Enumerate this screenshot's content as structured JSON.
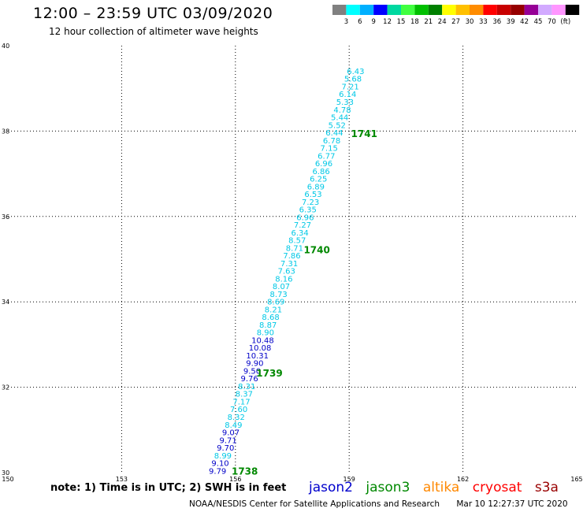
{
  "header": {
    "title": "12:00 – 23:59 UTC 03/09/2020",
    "subtitle": "12 hour collection of altimeter wave heights"
  },
  "legend": {
    "colors": [
      "#808080",
      "#00ffff",
      "#00b0ff",
      "#0000ff",
      "#00d8a0",
      "#40ff40",
      "#00c000",
      "#008000",
      "#ffff00",
      "#ffc000",
      "#ff8c00",
      "#ff0000",
      "#c80000",
      "#960000",
      "#960096",
      "#d2aaff",
      "#ff96ff",
      "#000000"
    ],
    "labels": [
      "3",
      "6",
      "9",
      "12",
      "15",
      "18",
      "21",
      "24",
      "27",
      "30",
      "33",
      "36",
      "39",
      "42",
      "45",
      "70",
      "(ft)"
    ]
  },
  "footer": {
    "note": "note: 1) Time is in UTC; 2) SWH is in feet",
    "satellites": [
      {
        "name": "jason2",
        "color": "#0000cc"
      },
      {
        "name": "jason3",
        "color": "#008800"
      },
      {
        "name": "altika",
        "color": "#ff8800"
      },
      {
        "name": "cryosat",
        "color": "#ff0000"
      },
      {
        "name": "s3a",
        "color": "#990000"
      }
    ],
    "credit": "NOAA/NESDIS Center for Satellite Applications and Research",
    "timestamp": "Mar 10 12:27:37 UTC 2020"
  },
  "chart_data": {
    "type": "scatter",
    "title": "12:00 – 23:59 UTC 03/09/2020",
    "subtitle": "12 hour collection of altimeter wave heights",
    "xlim": [
      150,
      165
    ],
    "ylim": [
      30,
      40
    ],
    "x_ticks": [
      150,
      153,
      156,
      159,
      162,
      165
    ],
    "y_ticks": [
      30,
      32,
      34,
      36,
      38,
      40
    ],
    "grid": true,
    "units": "ft",
    "series": [
      {
        "name": "jason2",
        "points": [
          {
            "x": 155.53,
            "y": 30.05,
            "v": 9.79
          },
          {
            "x": 155.6,
            "y": 30.23,
            "v": 9.1
          },
          {
            "x": 155.67,
            "y": 30.41,
            "v": 8.99
          },
          {
            "x": 155.74,
            "y": 30.59,
            "v": 9.7
          },
          {
            "x": 155.81,
            "y": 30.77,
            "v": 9.71
          },
          {
            "x": 155.88,
            "y": 30.95,
            "v": 9.07
          },
          {
            "x": 155.95,
            "y": 31.13,
            "v": 8.49
          },
          {
            "x": 156.02,
            "y": 31.31,
            "v": 8.32
          },
          {
            "x": 156.09,
            "y": 31.49,
            "v": 7.6
          },
          {
            "x": 156.16,
            "y": 31.67,
            "v": 7.17
          },
          {
            "x": 156.23,
            "y": 31.85,
            "v": 8.37
          },
          {
            "x": 156.3,
            "y": 32.03,
            "v": 8.31
          },
          {
            "x": 156.37,
            "y": 32.21,
            "v": 9.76
          },
          {
            "x": 156.44,
            "y": 32.39,
            "v": 9.5
          },
          {
            "x": 156.51,
            "y": 32.57,
            "v": 9.9
          },
          {
            "x": 156.58,
            "y": 32.75,
            "v": 10.31
          },
          {
            "x": 156.65,
            "y": 32.93,
            "v": 10.08
          },
          {
            "x": 156.72,
            "y": 33.11,
            "v": 10.48
          },
          {
            "x": 156.79,
            "y": 33.29,
            "v": 8.9
          },
          {
            "x": 156.86,
            "y": 33.47,
            "v": 8.87
          },
          {
            "x": 156.93,
            "y": 33.65,
            "v": 8.68
          },
          {
            "x": 157.0,
            "y": 33.83,
            "v": 8.21
          },
          {
            "x": 157.07,
            "y": 34.01,
            "v": 8.69
          },
          {
            "x": 157.14,
            "y": 34.19,
            "v": 8.73
          },
          {
            "x": 157.21,
            "y": 34.37,
            "v": 8.07
          },
          {
            "x": 157.28,
            "y": 34.55,
            "v": 8.16
          },
          {
            "x": 157.35,
            "y": 34.73,
            "v": 7.63
          },
          {
            "x": 157.42,
            "y": 34.91,
            "v": 7.31
          },
          {
            "x": 157.49,
            "y": 35.09,
            "v": 7.86
          },
          {
            "x": 157.56,
            "y": 35.27,
            "v": 8.71
          },
          {
            "x": 157.63,
            "y": 35.45,
            "v": 8.57
          },
          {
            "x": 157.7,
            "y": 35.63,
            "v": 6.34
          },
          {
            "x": 157.77,
            "y": 35.81,
            "v": 7.27
          },
          {
            "x": 157.84,
            "y": 35.99,
            "v": 6.96
          },
          {
            "x": 157.91,
            "y": 36.17,
            "v": 6.35
          },
          {
            "x": 157.98,
            "y": 36.35,
            "v": 7.23
          },
          {
            "x": 158.05,
            "y": 36.53,
            "v": 6.53
          },
          {
            "x": 158.12,
            "y": 36.71,
            "v": 6.89
          },
          {
            "x": 158.19,
            "y": 36.89,
            "v": 6.25
          },
          {
            "x": 158.26,
            "y": 37.07,
            "v": 6.86
          },
          {
            "x": 158.33,
            "y": 37.25,
            "v": 6.96
          },
          {
            "x": 158.4,
            "y": 37.43,
            "v": 6.77
          },
          {
            "x": 158.47,
            "y": 37.61,
            "v": 7.15
          },
          {
            "x": 158.54,
            "y": 37.79,
            "v": 6.78
          },
          {
            "x": 158.61,
            "y": 37.97,
            "v": 6.44
          },
          {
            "x": 158.68,
            "y": 38.15,
            "v": 5.52
          },
          {
            "x": 158.75,
            "y": 38.33,
            "v": 5.44
          },
          {
            "x": 158.82,
            "y": 38.51,
            "v": 4.78
          },
          {
            "x": 158.89,
            "y": 38.69,
            "v": 5.33
          },
          {
            "x": 158.96,
            "y": 38.87,
            "v": 6.14
          },
          {
            "x": 159.03,
            "y": 39.05,
            "v": 7.21
          },
          {
            "x": 159.1,
            "y": 39.23,
            "v": 5.68
          },
          {
            "x": 159.17,
            "y": 39.41,
            "v": 6.43
          }
        ]
      }
    ],
    "time_labels": [
      {
        "x": 155.9,
        "y": 30.05,
        "text": "1738"
      },
      {
        "x": 156.55,
        "y": 32.34,
        "text": "1739"
      },
      {
        "x": 157.8,
        "y": 35.23,
        "text": "1740"
      },
      {
        "x": 159.05,
        "y": 37.95,
        "text": "1741"
      }
    ]
  }
}
